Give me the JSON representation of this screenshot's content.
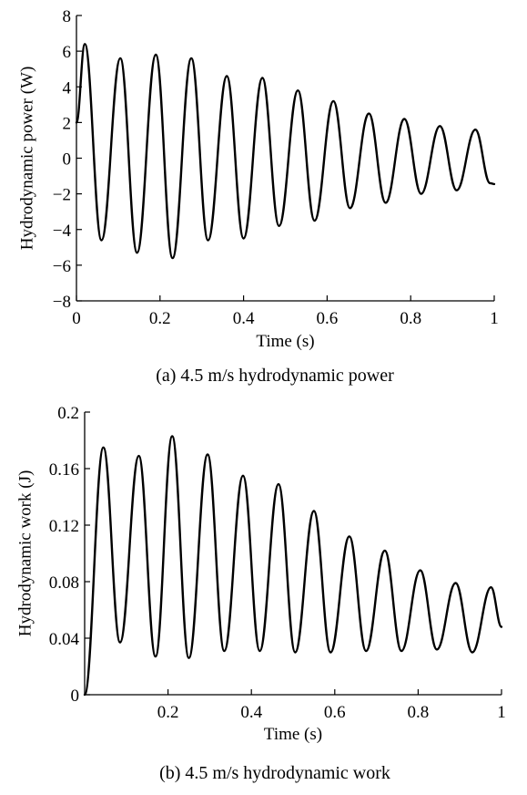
{
  "chart_data": [
    {
      "type": "line",
      "caption": "(a) 4.5 m/s hydrodynamic power",
      "xlabel": "Time (s)",
      "ylabel": "Hydrodynamic power (W)",
      "xlim": [
        0,
        1
      ],
      "ylim": [
        -8,
        8
      ],
      "xticks": [
        0,
        0.2,
        0.4,
        0.6,
        0.8,
        1
      ],
      "xtick_labels": [
        "0",
        "0.2",
        "0.4",
        "0.6",
        "0.8",
        "1"
      ],
      "yticks": [
        -8,
        -6,
        -4,
        -2,
        0,
        2,
        4,
        6,
        8
      ],
      "ytick_labels": [
        "−8",
        "−6",
        "−4",
        "−2",
        "0",
        "2",
        "4",
        "6",
        "8"
      ],
      "grid": false,
      "series": [
        {
          "color": "#000000",
          "points": [
            [
              0.0,
              2.0
            ],
            [
              0.02,
              6.4
            ],
            [
              0.06,
              -4.6
            ],
            [
              0.105,
              5.6
            ],
            [
              0.145,
              -5.3
            ],
            [
              0.19,
              5.8
            ],
            [
              0.23,
              -5.6
            ],
            [
              0.275,
              5.6
            ],
            [
              0.315,
              -4.6
            ],
            [
              0.36,
              4.6
            ],
            [
              0.4,
              -4.5
            ],
            [
              0.445,
              4.5
            ],
            [
              0.485,
              -3.8
            ],
            [
              0.53,
              3.8
            ],
            [
              0.57,
              -3.5
            ],
            [
              0.615,
              3.2
            ],
            [
              0.655,
              -2.8
            ],
            [
              0.7,
              2.5
            ],
            [
              0.74,
              -2.5
            ],
            [
              0.785,
              2.2
            ],
            [
              0.825,
              -2.0
            ],
            [
              0.87,
              1.8
            ],
            [
              0.91,
              -1.8
            ],
            [
              0.955,
              1.6
            ],
            [
              0.99,
              -1.4
            ],
            [
              1.0,
              -1.45
            ]
          ]
        }
      ]
    },
    {
      "type": "line",
      "caption": "(b) 4.5 m/s hydrodynamic work",
      "xlabel": "Time (s)",
      "ylabel": "Hydrodynamic work (J)",
      "xlim": [
        0,
        1
      ],
      "ylim": [
        0,
        0.2
      ],
      "xticks": [
        0.2,
        0.4,
        0.6,
        0.8,
        1
      ],
      "xtick_labels": [
        "0.2",
        "0.4",
        "0.6",
        "0.8",
        "1"
      ],
      "yticks": [
        0,
        0.04,
        0.08,
        0.12,
        0.16,
        0.2
      ],
      "ytick_labels": [
        "0",
        "0.04",
        "0.08",
        "0.12",
        "0.16",
        "0.2"
      ],
      "grid": false,
      "series": [
        {
          "color": "#000000",
          "points": [
            [
              0.0,
              0.0
            ],
            [
              0.045,
              0.175
            ],
            [
              0.085,
              0.037
            ],
            [
              0.13,
              0.169
            ],
            [
              0.17,
              0.027
            ],
            [
              0.21,
              0.183
            ],
            [
              0.25,
              0.026
            ],
            [
              0.295,
              0.17
            ],
            [
              0.335,
              0.031
            ],
            [
              0.38,
              0.155
            ],
            [
              0.42,
              0.031
            ],
            [
              0.465,
              0.149
            ],
            [
              0.505,
              0.03
            ],
            [
              0.55,
              0.13
            ],
            [
              0.59,
              0.03
            ],
            [
              0.635,
              0.112
            ],
            [
              0.675,
              0.031
            ],
            [
              0.72,
              0.102
            ],
            [
              0.76,
              0.031
            ],
            [
              0.805,
              0.088
            ],
            [
              0.845,
              0.032
            ],
            [
              0.89,
              0.079
            ],
            [
              0.93,
              0.03
            ],
            [
              0.975,
              0.076
            ],
            [
              1.0,
              0.048
            ]
          ]
        }
      ]
    }
  ]
}
